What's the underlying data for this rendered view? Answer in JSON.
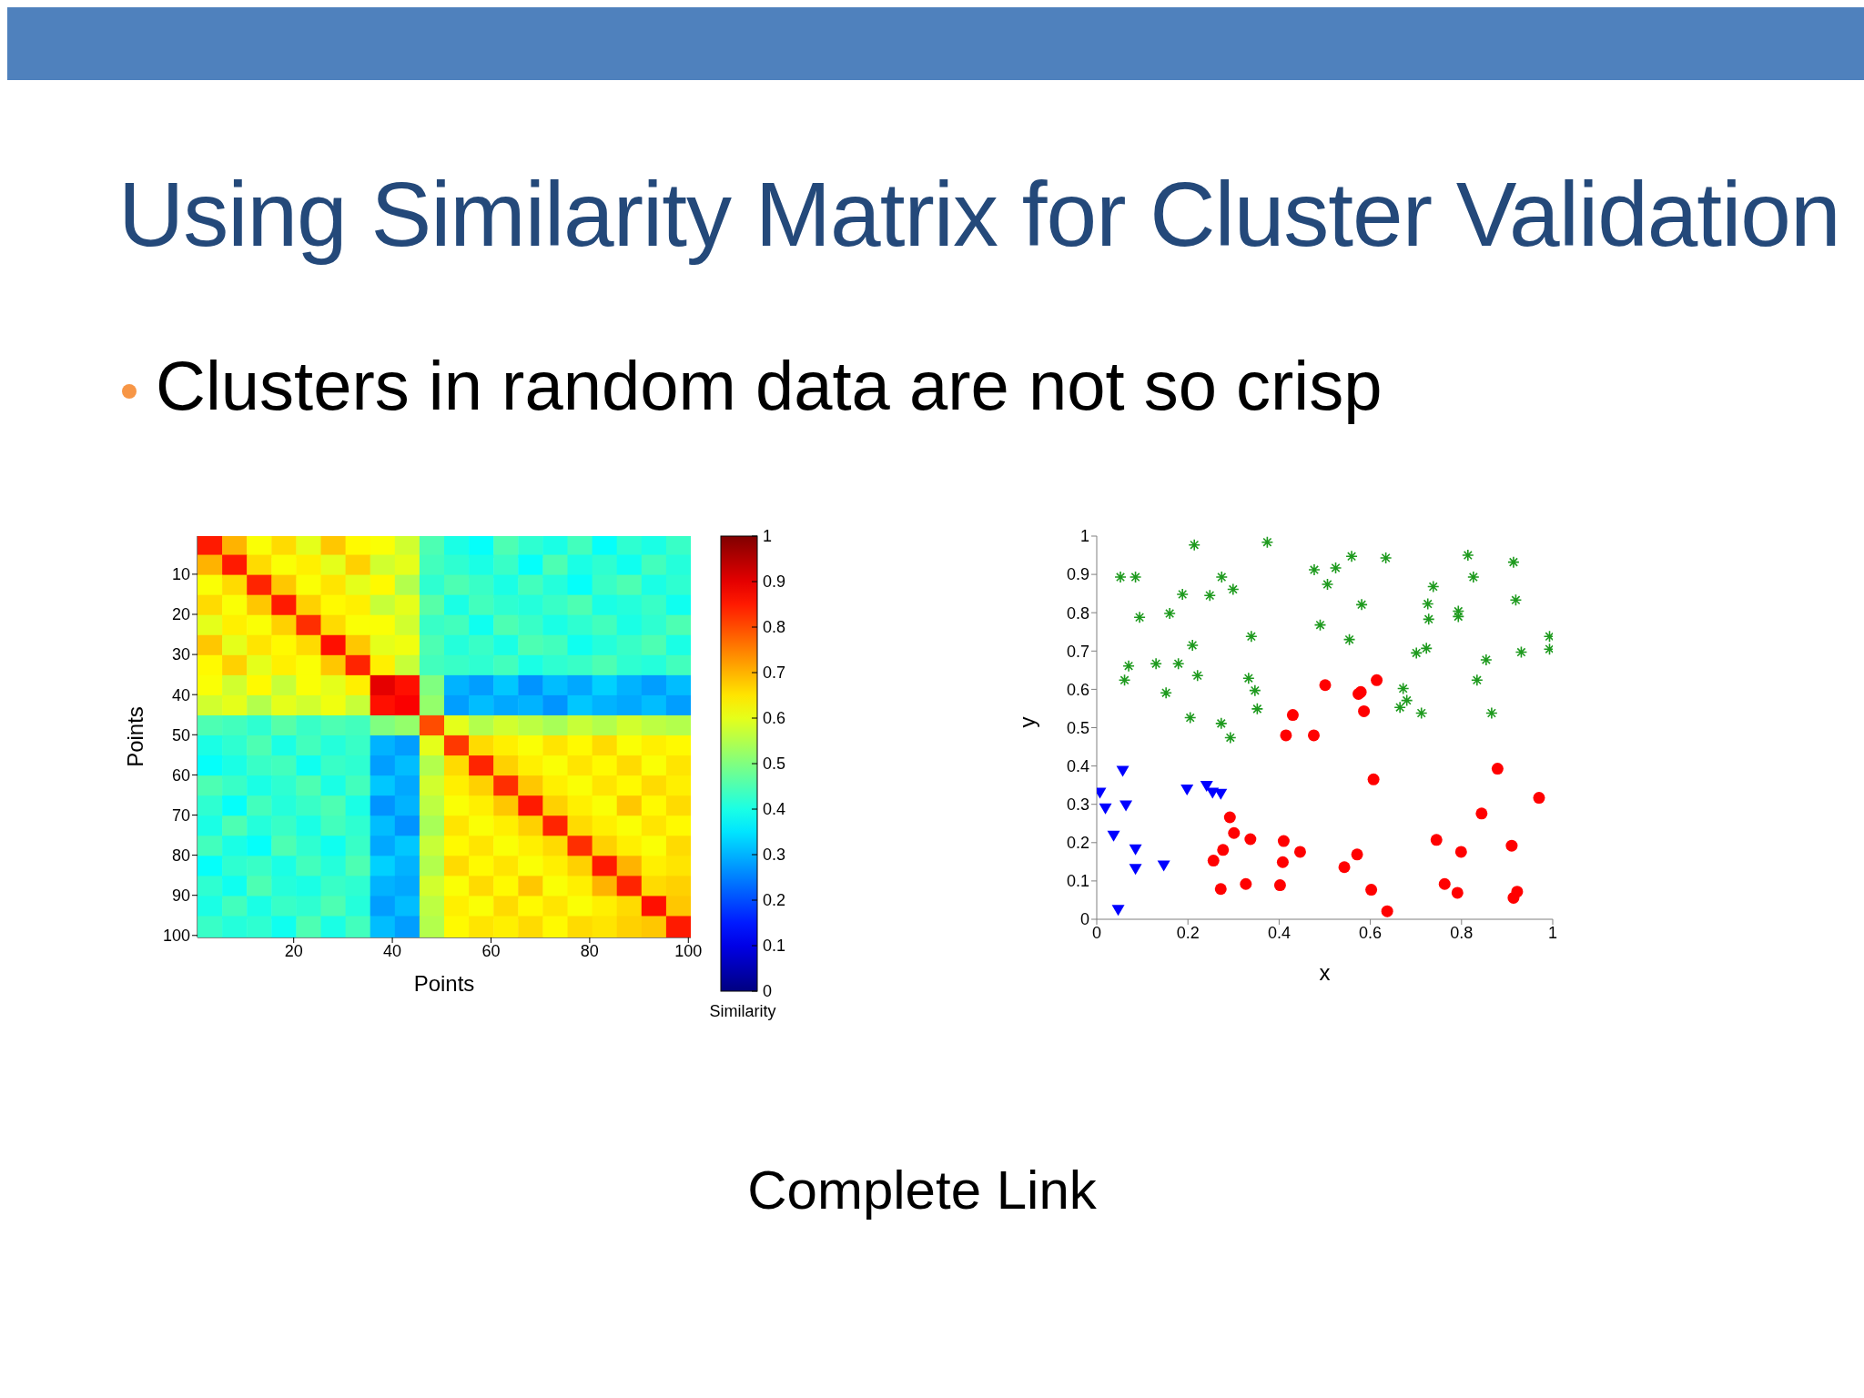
{
  "chart_data": [
    {
      "type": "heatmap",
      "title": "Using Similarity Matrix for Cluster Validation",
      "subtitle": "Clusters in random data are not so crisp",
      "annotations": [
        "Complete Link"
      ],
      "xlabel": "Points",
      "ylabel": "Points",
      "clabel": "Similarity",
      "x": [
        3,
        8,
        13,
        18,
        23,
        28,
        33,
        38,
        43,
        48,
        53,
        58,
        63,
        68,
        73,
        78,
        83,
        88,
        93,
        98
      ],
      "xlim": [
        0.5,
        100.5
      ],
      "xticks": [
        20,
        40,
        60,
        80,
        100
      ],
      "ylim": [
        100.5,
        0.5
      ],
      "yticks": [
        10,
        20,
        30,
        40,
        50,
        60,
        70,
        80,
        90,
        100
      ],
      "clim": [
        0,
        1
      ],
      "cticks": [
        0,
        0.1,
        0.2,
        0.3,
        0.4,
        0.5,
        0.6,
        0.7,
        0.8,
        0.9,
        1
      ],
      "cells": [
        [
          0.85,
          0.7,
          0.62,
          0.66,
          0.6,
          0.68,
          0.63,
          0.62,
          0.58,
          0.45,
          0.4,
          0.38,
          0.45,
          0.42,
          0.4,
          0.44,
          0.38,
          0.42,
          0.4,
          0.43
        ],
        [
          0.7,
          0.85,
          0.66,
          0.62,
          0.64,
          0.6,
          0.67,
          0.58,
          0.6,
          0.44,
          0.42,
          0.4,
          0.43,
          0.38,
          0.45,
          0.4,
          0.42,
          0.39,
          0.44,
          0.41
        ],
        [
          0.62,
          0.66,
          0.84,
          0.68,
          0.62,
          0.65,
          0.6,
          0.63,
          0.55,
          0.42,
          0.45,
          0.43,
          0.4,
          0.44,
          0.41,
          0.38,
          0.43,
          0.45,
          0.4,
          0.42
        ],
        [
          0.66,
          0.62,
          0.68,
          0.85,
          0.67,
          0.63,
          0.64,
          0.57,
          0.6,
          0.46,
          0.4,
          0.44,
          0.42,
          0.41,
          0.43,
          0.45,
          0.4,
          0.41,
          0.43,
          0.39
        ],
        [
          0.6,
          0.64,
          0.62,
          0.67,
          0.83,
          0.66,
          0.62,
          0.62,
          0.58,
          0.43,
          0.44,
          0.39,
          0.45,
          0.43,
          0.4,
          0.42,
          0.44,
          0.4,
          0.42,
          0.45
        ],
        [
          0.68,
          0.6,
          0.65,
          0.63,
          0.66,
          0.86,
          0.68,
          0.6,
          0.61,
          0.45,
          0.41,
          0.43,
          0.4,
          0.45,
          0.44,
          0.39,
          0.41,
          0.43,
          0.45,
          0.4
        ],
        [
          0.63,
          0.67,
          0.6,
          0.64,
          0.62,
          0.68,
          0.84,
          0.64,
          0.57,
          0.44,
          0.43,
          0.42,
          0.44,
          0.4,
          0.42,
          0.43,
          0.45,
          0.42,
          0.41,
          0.44
        ],
        [
          0.62,
          0.58,
          0.63,
          0.57,
          0.62,
          0.6,
          0.64,
          0.9,
          0.86,
          0.5,
          0.3,
          0.28,
          0.32,
          0.27,
          0.31,
          0.29,
          0.33,
          0.3,
          0.28,
          0.31
        ],
        [
          0.58,
          0.6,
          0.55,
          0.6,
          0.58,
          0.61,
          0.57,
          0.86,
          0.88,
          0.52,
          0.28,
          0.31,
          0.29,
          0.3,
          0.27,
          0.32,
          0.3,
          0.29,
          0.31,
          0.28
        ],
        [
          0.45,
          0.44,
          0.42,
          0.46,
          0.43,
          0.45,
          0.44,
          0.5,
          0.52,
          0.8,
          0.6,
          0.55,
          0.58,
          0.56,
          0.54,
          0.57,
          0.55,
          0.58,
          0.56,
          0.55
        ],
        [
          0.4,
          0.42,
          0.45,
          0.4,
          0.44,
          0.41,
          0.43,
          0.3,
          0.28,
          0.6,
          0.82,
          0.66,
          0.64,
          0.62,
          0.65,
          0.63,
          0.66,
          0.62,
          0.64,
          0.63
        ],
        [
          0.38,
          0.4,
          0.43,
          0.44,
          0.39,
          0.43,
          0.42,
          0.28,
          0.31,
          0.55,
          0.66,
          0.84,
          0.67,
          0.64,
          0.62,
          0.65,
          0.63,
          0.66,
          0.62,
          0.65
        ],
        [
          0.45,
          0.43,
          0.4,
          0.42,
          0.45,
          0.4,
          0.44,
          0.32,
          0.29,
          0.58,
          0.64,
          0.67,
          0.83,
          0.68,
          0.64,
          0.62,
          0.65,
          0.63,
          0.66,
          0.64
        ],
        [
          0.42,
          0.38,
          0.44,
          0.41,
          0.43,
          0.45,
          0.4,
          0.27,
          0.3,
          0.56,
          0.62,
          0.64,
          0.68,
          0.85,
          0.67,
          0.64,
          0.62,
          0.68,
          0.63,
          0.66
        ],
        [
          0.4,
          0.45,
          0.41,
          0.43,
          0.4,
          0.44,
          0.42,
          0.31,
          0.27,
          0.54,
          0.65,
          0.62,
          0.64,
          0.67,
          0.84,
          0.66,
          0.64,
          0.62,
          0.65,
          0.63
        ],
        [
          0.44,
          0.4,
          0.38,
          0.45,
          0.42,
          0.39,
          0.43,
          0.29,
          0.32,
          0.57,
          0.63,
          0.65,
          0.62,
          0.64,
          0.66,
          0.83,
          0.67,
          0.64,
          0.62,
          0.66
        ],
        [
          0.38,
          0.42,
          0.43,
          0.4,
          0.44,
          0.41,
          0.45,
          0.33,
          0.3,
          0.55,
          0.66,
          0.63,
          0.65,
          0.62,
          0.64,
          0.67,
          0.85,
          0.7,
          0.64,
          0.65
        ],
        [
          0.42,
          0.39,
          0.45,
          0.41,
          0.4,
          0.43,
          0.42,
          0.3,
          0.29,
          0.58,
          0.62,
          0.66,
          0.63,
          0.68,
          0.62,
          0.64,
          0.7,
          0.84,
          0.66,
          0.67
        ],
        [
          0.4,
          0.44,
          0.4,
          0.43,
          0.42,
          0.45,
          0.41,
          0.28,
          0.31,
          0.56,
          0.64,
          0.62,
          0.66,
          0.63,
          0.65,
          0.62,
          0.64,
          0.66,
          0.86,
          0.68
        ],
        [
          0.43,
          0.41,
          0.42,
          0.39,
          0.45,
          0.4,
          0.44,
          0.31,
          0.28,
          0.55,
          0.63,
          0.65,
          0.64,
          0.66,
          0.63,
          0.66,
          0.65,
          0.67,
          0.68,
          0.85
        ]
      ]
    },
    {
      "type": "scatter",
      "xlabel": "x",
      "ylabel": "y",
      "xlim": [
        0,
        1
      ],
      "xticks": [
        0,
        0.2,
        0.4,
        0.6,
        0.8,
        1
      ],
      "ylim": [
        0,
        1
      ],
      "yticks": [
        0,
        0.1,
        0.2,
        0.3,
        0.4,
        0.5,
        0.6,
        0.7,
        0.8,
        0.9,
        1
      ],
      "series": [
        {
          "color": "#1e9a1e",
          "marker": "cross",
          "x": [
            0.052,
            0.085,
            0.214,
            0.374,
            0.274,
            0.188,
            0.248,
            0.299,
            0.094,
            0.16,
            0.477,
            0.524,
            0.559,
            0.634,
            0.506,
            0.581,
            0.814,
            0.914,
            0.826,
            0.738,
            0.726,
            0.728,
            0.793,
            0.793,
            0.919,
            0.49,
            0.339,
            0.21,
            0.554,
            0.723,
            0.701,
            0.993,
            0.993,
            0.931,
            0.854,
            0.834,
            0.07,
            0.13,
            0.179,
            0.061,
            0.221,
            0.333,
            0.347,
            0.152,
            0.352,
            0.205,
            0.273,
            0.293,
            0.672,
            0.68,
            0.665,
            0.712,
            0.866
          ],
          "values": [
            0.893,
            0.893,
            0.977,
            0.984,
            0.893,
            0.848,
            0.845,
            0.861,
            0.788,
            0.798,
            0.912,
            0.917,
            0.947,
            0.943,
            0.874,
            0.821,
            0.95,
            0.932,
            0.893,
            0.868,
            0.823,
            0.783,
            0.804,
            0.79,
            0.833,
            0.768,
            0.738,
            0.715,
            0.73,
            0.707,
            0.695,
            0.738,
            0.705,
            0.697,
            0.677,
            0.624,
            0.661,
            0.667,
            0.667,
            0.624,
            0.636,
            0.629,
            0.597,
            0.591,
            0.549,
            0.526,
            0.511,
            0.474,
            0.602,
            0.571,
            0.553,
            0.538,
            0.538
          ]
        },
        {
          "color": "#ff0000",
          "marker": "circle",
          "x": [
            0.501,
            0.614,
            0.579,
            0.574,
            0.586,
            0.43,
            0.415,
            0.476,
            0.607,
            0.879,
            0.97,
            0.844,
            0.292,
            0.301,
            0.337,
            0.41,
            0.277,
            0.256,
            0.446,
            0.408,
            0.571,
            0.543,
            0.745,
            0.799,
            0.91,
            0.272,
            0.327,
            0.402,
            0.602,
            0.637,
            0.763,
            0.791,
            0.922,
            0.914
          ],
          "values": [
            0.611,
            0.624,
            0.593,
            0.588,
            0.543,
            0.533,
            0.48,
            0.48,
            0.365,
            0.393,
            0.317,
            0.276,
            0.266,
            0.225,
            0.209,
            0.204,
            0.181,
            0.153,
            0.176,
            0.149,
            0.169,
            0.136,
            0.207,
            0.176,
            0.192,
            0.079,
            0.092,
            0.089,
            0.077,
            0.021,
            0.092,
            0.069,
            0.072,
            0.056
          ]
        },
        {
          "color": "#0000ff",
          "marker": "triangle",
          "x": [
            0.007,
            0.019,
            0.057,
            0.064,
            0.037,
            0.085,
            0.085,
            0.147,
            0.047,
            0.198,
            0.241,
            0.254,
            0.272
          ],
          "values": [
            0.329,
            0.288,
            0.386,
            0.296,
            0.217,
            0.181,
            0.13,
            0.139,
            0.023,
            0.337,
            0.347,
            0.329,
            0.326
          ]
        }
      ]
    }
  ]
}
